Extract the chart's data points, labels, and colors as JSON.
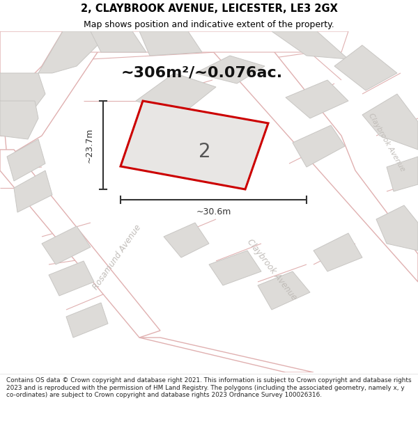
{
  "title_line1": "2, CLAYBROOK AVENUE, LEICESTER, LE3 2GX",
  "title_line2": "Map shows position and indicative extent of the property.",
  "area_text": "~306m²/~0.076ac.",
  "dim_width": "~30.6m",
  "dim_height": "~23.7m",
  "plot_number": "2",
  "footer_text": "Contains OS data © Crown copyright and database right 2021. This information is subject to Crown copyright and database rights 2023 and is reproduced with the permission of HM Land Registry. The polygons (including the associated geometry, namely x, y co-ordinates) are subject to Crown copyright and database rights 2023 Ordnance Survey 100026316.",
  "map_bg": "#f2f0ee",
  "road_fill": "#ffffff",
  "road_edge": "#e0b0b0",
  "building_fill": "#dddbd8",
  "building_edge": "#c8c6c3",
  "plot_fill": "#e8e6e4",
  "plot_stroke": "#cc0000",
  "street_label_color": "#c0bcb8",
  "title_color": "#000000",
  "dim_color": "#333333",
  "number_color": "#555555"
}
